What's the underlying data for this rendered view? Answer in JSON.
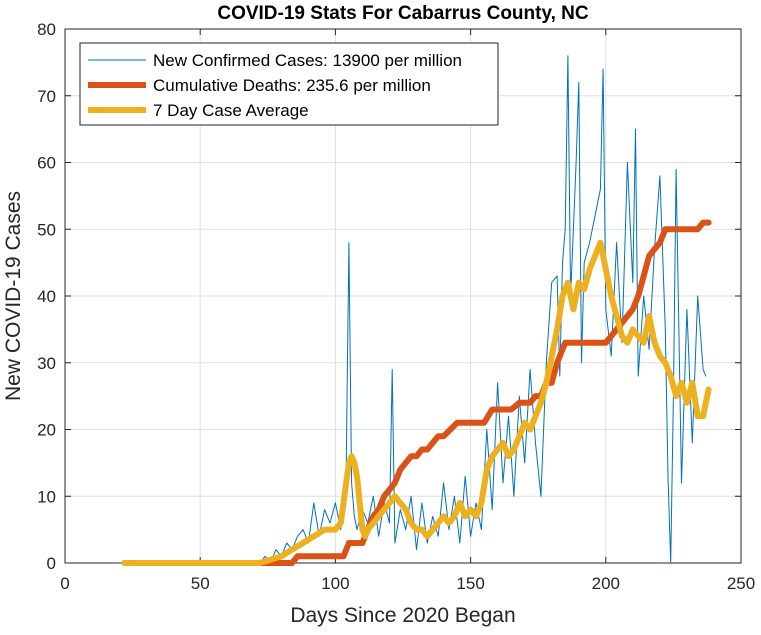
{
  "chart_data": {
    "type": "line",
    "title": "COVID-19 Stats For Cabarrus County, NC",
    "xlabel": "Days Since 2020 Began",
    "ylabel": "New COVID-19 Cases",
    "xlim": [
      0,
      250
    ],
    "ylim": [
      0,
      80
    ],
    "xticks": [
      0,
      50,
      100,
      150,
      200,
      250
    ],
    "yticks": [
      0,
      10,
      20,
      30,
      40,
      50,
      60,
      70,
      80
    ],
    "grid": true,
    "legend_position": "top-left",
    "series": [
      {
        "name": "New Confirmed Cases: 13900 per million",
        "color": "#0072BD",
        "style": "thin",
        "x": [
          22,
          50,
          72,
          74,
          76,
          78,
          80,
          82,
          84,
          86,
          88,
          90,
          92,
          94,
          96,
          98,
          100,
          102,
          104,
          105,
          106,
          107,
          108,
          110,
          112,
          114,
          116,
          118,
          120,
          121,
          122,
          124,
          126,
          128,
          130,
          132,
          134,
          136,
          138,
          140,
          142,
          144,
          146,
          148,
          150,
          152,
          154,
          156,
          158,
          160,
          162,
          164,
          166,
          168,
          170,
          172,
          174,
          176,
          178,
          180,
          182,
          183,
          184,
          185,
          186,
          187,
          188,
          189,
          190,
          191,
          192,
          194,
          196,
          198,
          199,
          200,
          202,
          204,
          206,
          208,
          210,
          211,
          212,
          214,
          216,
          218,
          220,
          222,
          223,
          224,
          225,
          226,
          228,
          230,
          232,
          234,
          236,
          237
        ],
        "y": [
          0,
          0,
          0,
          1,
          0,
          2,
          1,
          3,
          2,
          4,
          5,
          3,
          9,
          4,
          8,
          6,
          9,
          5,
          14,
          48,
          12,
          7,
          5,
          8,
          6,
          10,
          4,
          9,
          6,
          29,
          3,
          8,
          5,
          10,
          2,
          9,
          3,
          7,
          4,
          12,
          5,
          10,
          3,
          13,
          4,
          9,
          5,
          20,
          8,
          27,
          12,
          22,
          10,
          25,
          15,
          29,
          18,
          10,
          30,
          42,
          43,
          28,
          45,
          50,
          76,
          40,
          50,
          60,
          72,
          30,
          45,
          48,
          52,
          56,
          74,
          38,
          31,
          48,
          33,
          60,
          42,
          65,
          28,
          40,
          32,
          47,
          58,
          35,
          13,
          0,
          25,
          59,
          12,
          38,
          18,
          40,
          29,
          28
        ],
        "style_width": 1
      },
      {
        "name": "Cumulative Deaths: 235.6 per million",
        "color": "#D95319",
        "style": "thick",
        "x": [
          22,
          50,
          84,
          86,
          90,
          95,
          100,
          103,
          105,
          108,
          110,
          112,
          114,
          116,
          118,
          120,
          122,
          124,
          126,
          128,
          130,
          132,
          134,
          136,
          138,
          140,
          145,
          150,
          155,
          158,
          160,
          165,
          168,
          172,
          174,
          176,
          178,
          180,
          182,
          185,
          188,
          190,
          192,
          194,
          196,
          198,
          200,
          202,
          204,
          206,
          208,
          210,
          212,
          214,
          216,
          218,
          220,
          222,
          224,
          226,
          228,
          230,
          232,
          234,
          236,
          238
        ],
        "y": [
          0,
          0,
          0,
          1,
          1,
          1,
          1,
          1,
          3,
          3,
          3,
          5,
          7,
          8,
          10,
          11,
          12,
          14,
          15,
          16,
          16,
          17,
          17,
          18,
          19,
          19,
          21,
          21,
          21,
          23,
          23,
          23,
          24,
          24,
          25,
          25,
          27,
          27,
          30,
          33,
          33,
          33,
          33,
          33,
          33,
          33,
          33,
          34,
          35,
          36,
          37,
          38,
          40,
          43,
          46,
          47,
          48,
          50,
          50,
          50,
          50,
          50,
          50,
          50,
          51,
          51
        ]
      },
      {
        "name": "7 Day Case Average",
        "color": "#EDB120",
        "style": "thick",
        "x": [
          22,
          50,
          72,
          76,
          80,
          84,
          88,
          92,
          96,
          100,
          102,
          104,
          105,
          106,
          107,
          108,
          109,
          110,
          111,
          112,
          114,
          116,
          118,
          120,
          122,
          124,
          126,
          128,
          130,
          132,
          134,
          136,
          138,
          140,
          142,
          144,
          146,
          148,
          150,
          152,
          154,
          156,
          158,
          160,
          162,
          164,
          166,
          168,
          170,
          172,
          174,
          176,
          178,
          180,
          182,
          184,
          186,
          188,
          190,
          192,
          194,
          196,
          198,
          200,
          202,
          204,
          206,
          208,
          210,
          212,
          214,
          216,
          218,
          220,
          222,
          224,
          226,
          228,
          230,
          232,
          234,
          236,
          238
        ],
        "y": [
          0,
          0,
          0,
          0.5,
          1,
          2,
          3,
          4,
          5,
          5,
          6,
          12,
          15,
          16,
          15,
          13,
          9,
          5,
          4,
          5,
          6,
          7,
          8,
          9,
          10,
          9,
          8,
          6,
          5,
          5,
          4,
          5,
          6,
          7,
          6,
          7,
          9,
          7,
          8,
          7,
          9,
          14,
          16,
          17,
          18,
          16,
          17,
          19,
          21,
          20,
          22,
          24,
          27,
          31,
          35,
          40,
          42,
          38,
          42,
          41,
          44,
          46,
          48,
          44,
          40,
          37,
          34,
          33,
          35,
          34,
          33,
          37,
          33,
          31,
          30,
          28,
          25,
          27,
          24,
          27,
          22,
          22,
          26
        ]
      }
    ]
  }
}
